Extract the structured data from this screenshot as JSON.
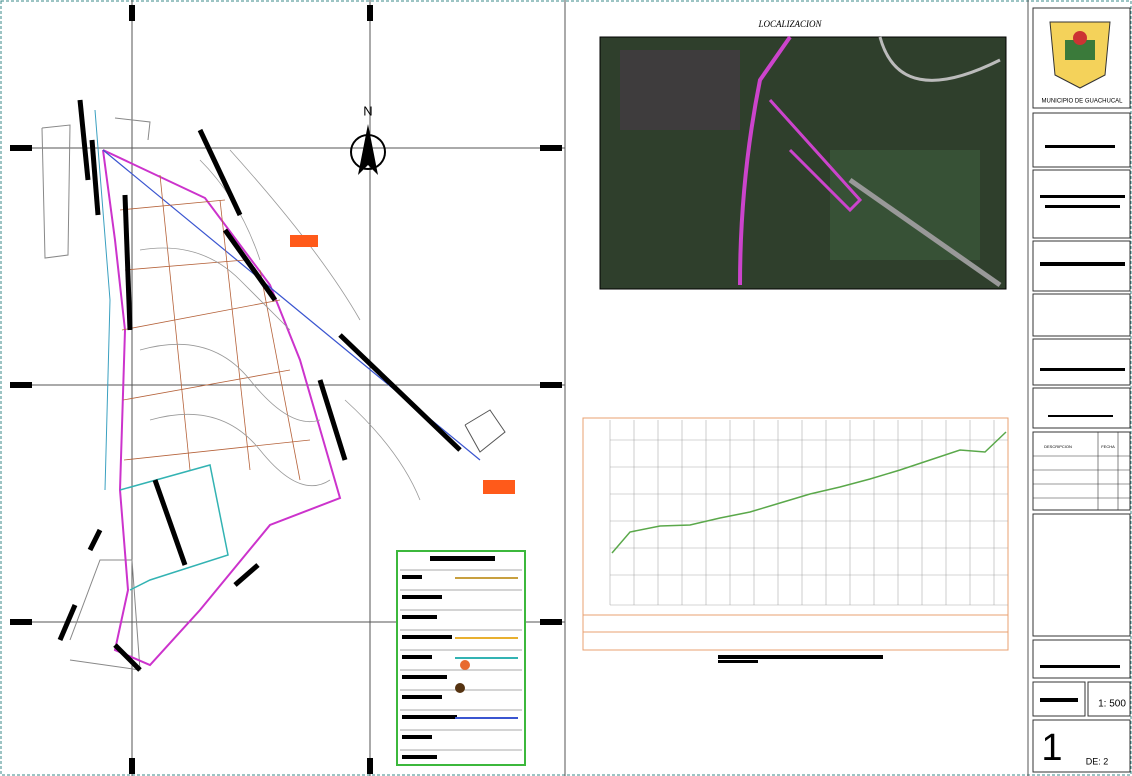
{
  "plan": {
    "north": "N"
  },
  "location": {
    "title": "LOCALIZACION"
  },
  "title_block": {
    "municipality": "MUNICIPIO DE GUACHUCAL",
    "table_headers": [
      "DESCRIPCION",
      "FECHA"
    ],
    "scale": "1: 500",
    "sheet": "1",
    "sheet_total": "DE: 2"
  }
}
